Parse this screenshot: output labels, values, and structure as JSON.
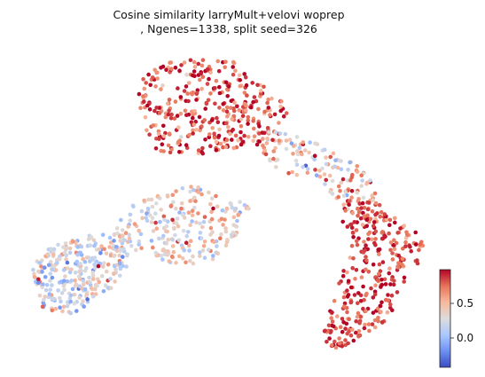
{
  "chart_data": {
    "type": "scatter",
    "title_line1": "Cosine similarity larryMult+velovi woprep",
    "title_line2": ", Ngenes=1338, split seed=326",
    "xlabel": "",
    "ylabel": "",
    "axes_visible": false,
    "grid": false,
    "point_count": 1338,
    "colormap": "coolwarm",
    "colorbar": {
      "range": [
        -0.35,
        0.95
      ],
      "ticks": [
        0.0,
        0.5
      ],
      "tick_labels": [
        "0.0",
        "0.5"
      ],
      "colors": [
        "#3b4cc0",
        "#6f92f3",
        "#aac7fd",
        "#dddcdc",
        "#f7b89c",
        "#e7755b",
        "#b40426"
      ]
    },
    "regions": [
      {
        "name": "left-blob",
        "x_range": [
          0,
          100
        ],
        "y_range": [
          0,
          100
        ],
        "value_mean": 0.25,
        "value_spread": 0.35
      },
      {
        "name": "middle-arm",
        "x_range": [
          0,
          100
        ],
        "y_range": [
          0,
          100
        ],
        "value_mean": 0.35,
        "value_spread": 0.35
      },
      {
        "name": "top-lobe",
        "x_range": [
          0,
          100
        ],
        "y_range": [
          0,
          100
        ],
        "value_mean": 0.78,
        "value_spread": 0.3
      },
      {
        "name": "bridge",
        "x_range": [
          0,
          100
        ],
        "y_range": [
          0,
          100
        ],
        "value_mean": 0.45,
        "value_spread": 0.4
      },
      {
        "name": "right-descending-lobe",
        "x_range": [
          0,
          100
        ],
        "y_range": [
          0,
          100
        ],
        "value_mean": 0.82,
        "value_spread": 0.22
      }
    ]
  }
}
